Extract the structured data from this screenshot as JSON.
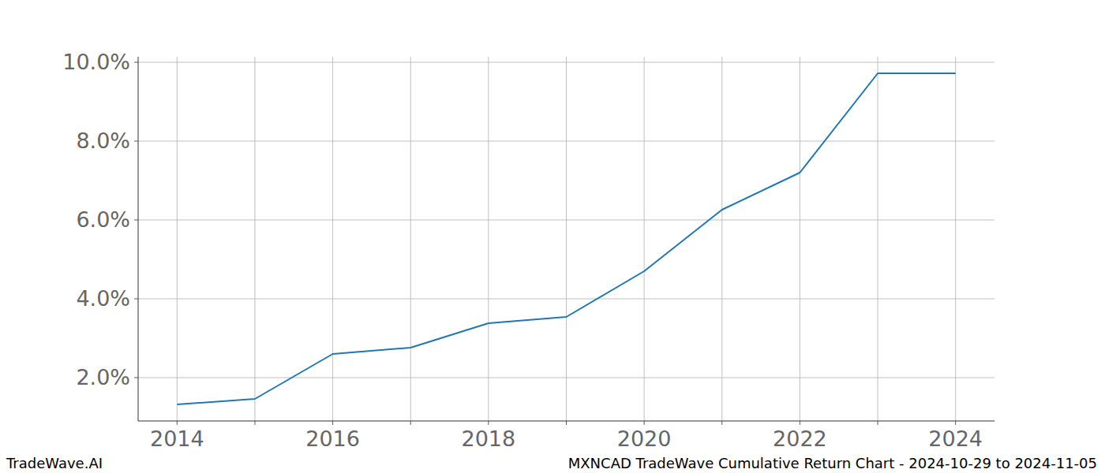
{
  "chart_data": {
    "type": "line",
    "title": "MXNCAD TradeWave Cumulative Return Chart - 2024-10-29 to 2024-11-05",
    "watermark": "TradeWave.AI",
    "x": [
      2014,
      2015,
      2016,
      2017,
      2018,
      2019,
      2020,
      2021,
      2022,
      2023,
      2024
    ],
    "series": [
      {
        "name": "MXNCAD",
        "color": "#1f77b4",
        "values": [
          1.32,
          1.46,
          2.6,
          2.76,
          3.38,
          3.54,
          4.7,
          6.26,
          7.2,
          9.72,
          9.72
        ]
      }
    ],
    "xlim": [
      2013.5,
      2024.5
    ],
    "xticks": [
      2014,
      {
        "value": 2015,
        "label": null
      },
      2016,
      {
        "value": 2017,
        "label": null
      },
      2018,
      {
        "value": 2019,
        "label": null
      },
      2020,
      {
        "value": 2021,
        "label": null
      },
      2022,
      {
        "value": 2023,
        "label": null
      },
      2024
    ],
    "ylim": [
      0.9,
      10.14
    ],
    "yticks": [
      {
        "value": 2,
        "label": "2.0%"
      },
      {
        "value": 4,
        "label": "4.0%"
      },
      {
        "value": 6,
        "label": "6.0%"
      },
      {
        "value": 8,
        "label": "8.0%"
      },
      {
        "value": 10,
        "label": "10.0%"
      }
    ],
    "grid": true
  }
}
